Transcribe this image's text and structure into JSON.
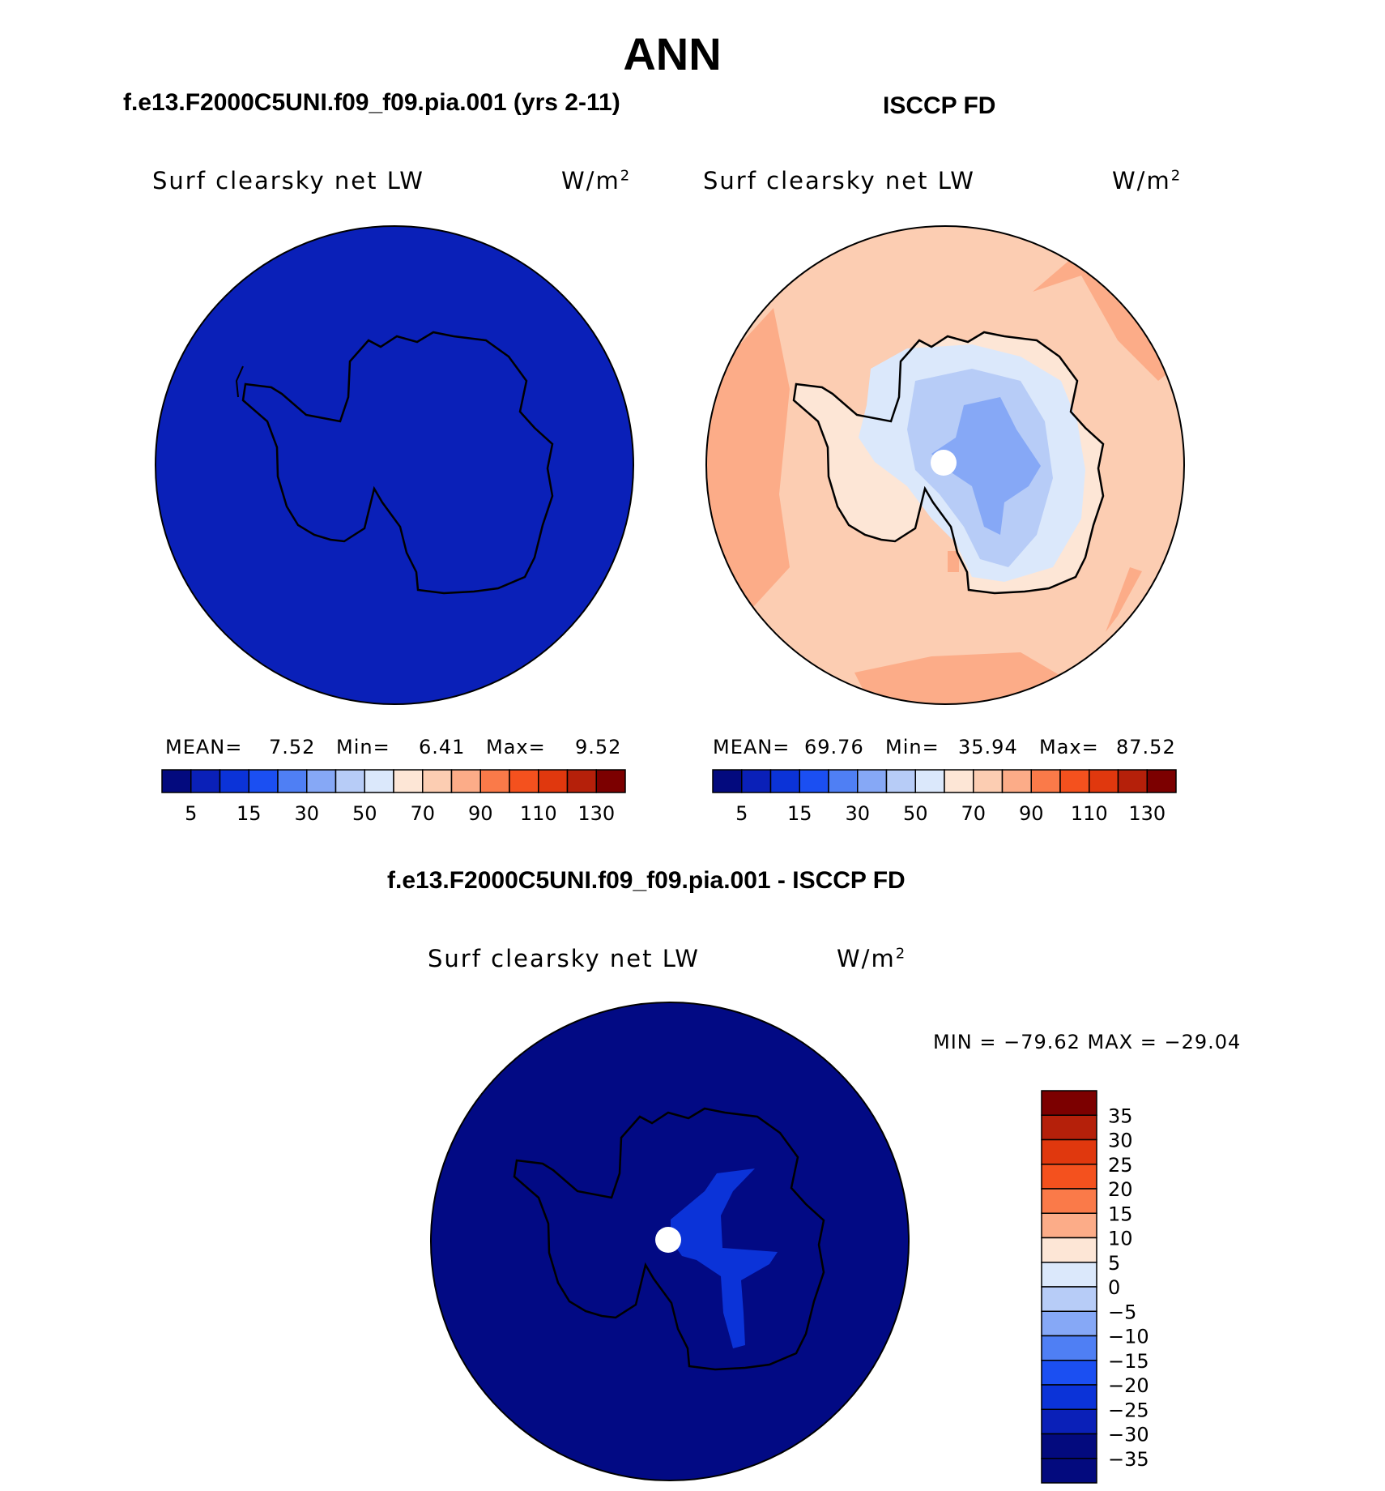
{
  "figure": {
    "season": "ANN"
  },
  "panels": [
    {
      "case_title": "f.e13.F2000C5UNI.f09_f09.pia.001 (yrs 2-11)",
      "variable": "Surf clearsky net LW",
      "units": "W/m",
      "units_exp": "2",
      "fill_color": "#0a20b8",
      "stats": {
        "mean_label": "MEAN=",
        "mean": "7.52",
        "min_label": "Min=",
        "min": "6.41",
        "max_label": "Max=",
        "max": "9.52"
      }
    },
    {
      "case_title": "ISCCP FD",
      "variable": "Surf clearsky net LW",
      "units": "W/m",
      "units_exp": "2",
      "fill_color": "#fccdb2",
      "stats": {
        "mean_label": "MEAN=",
        "mean": "69.76",
        "min_label": "Min=",
        "min": "35.94",
        "max_label": "Max=",
        "max": "87.52"
      }
    },
    {
      "case_title": "f.e13.F2000C5UNI.f09_f09.pia.001 - ISCCP FD",
      "variable": "Surf clearsky net LW",
      "units": "W/m",
      "units_exp": "2",
      "fill_color": "#020a84",
      "range_text": "MIN = −79.62  MAX = −29.04"
    }
  ],
  "colorbar_abs": {
    "colors": [
      "#030a7e",
      "#0a20b8",
      "#0b33d8",
      "#1b4ff2",
      "#4f7ff4",
      "#86a8f6",
      "#b7ccf7",
      "#dbe8fb",
      "#fde6d6",
      "#fccdb2",
      "#fcac88",
      "#fa7a49",
      "#f4511e",
      "#e0380e",
      "#b5200a",
      "#7c0000"
    ],
    "tick_labels": [
      "5",
      "15",
      "30",
      "50",
      "70",
      "90",
      "110",
      "130"
    ]
  },
  "colorbar_diff": {
    "colors": [
      "#7c0000",
      "#b5200a",
      "#e0380e",
      "#f4511e",
      "#fa7a49",
      "#fcac88",
      "#fde6d6",
      "#dbe8fb",
      "#b7ccf7",
      "#86a8f6",
      "#4f7ff4",
      "#1b4ff2",
      "#0b33d8",
      "#0a20b8",
      "#030a7e"
    ],
    "tick_labels": [
      "35",
      "30",
      "25",
      "20",
      "15",
      "10",
      "5",
      "0",
      "−5",
      "−10",
      "−15",
      "−20",
      "−25",
      "−30",
      "−35"
    ]
  },
  "colors": {
    "coast": "#000000",
    "pole_hole": "#ffffff",
    "obs_interior_1": "#fde6d6",
    "obs_interior_2": "#dbe8fb",
    "obs_interior_3": "#b7ccf7",
    "obs_interior_4": "#86a8f6",
    "obs_ocean_high": "#fcac88",
    "diff_interior": "#0b33d8"
  }
}
